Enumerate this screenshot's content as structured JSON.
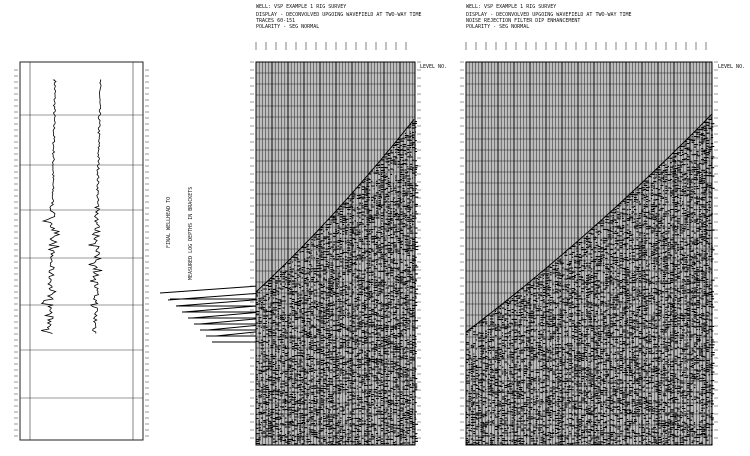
{
  "panels": [
    {
      "title": "WELL: VSP EXAMPLE 1 RIG SURVEY",
      "lines": [
        "DISPLAY - DECONVOLVED UPGOING WAVEFIELD AT TWO-WAY TIME",
        "TRACES 60-151",
        "POLARITY - SEG NORMAL"
      ],
      "level": "LEVEL NO."
    },
    {
      "title": "WELL: VSP EXAMPLE 1 RIG SURVEY",
      "lines": [
        "DISPLAY - DECONVOLVED UPGOING WAVEFIELD AT TWO-WAY TIME",
        "NOISE REJECTION FILTER DIP ENHANCEMENT",
        "POLARITY - SEG NORMAL"
      ],
      "level": "LEVEL NO."
    }
  ],
  "annotations": {
    "final": "FINAL WELLHEAD TO",
    "measured": "MEASURED LOG DEPTHS IN BRACKETS"
  }
}
